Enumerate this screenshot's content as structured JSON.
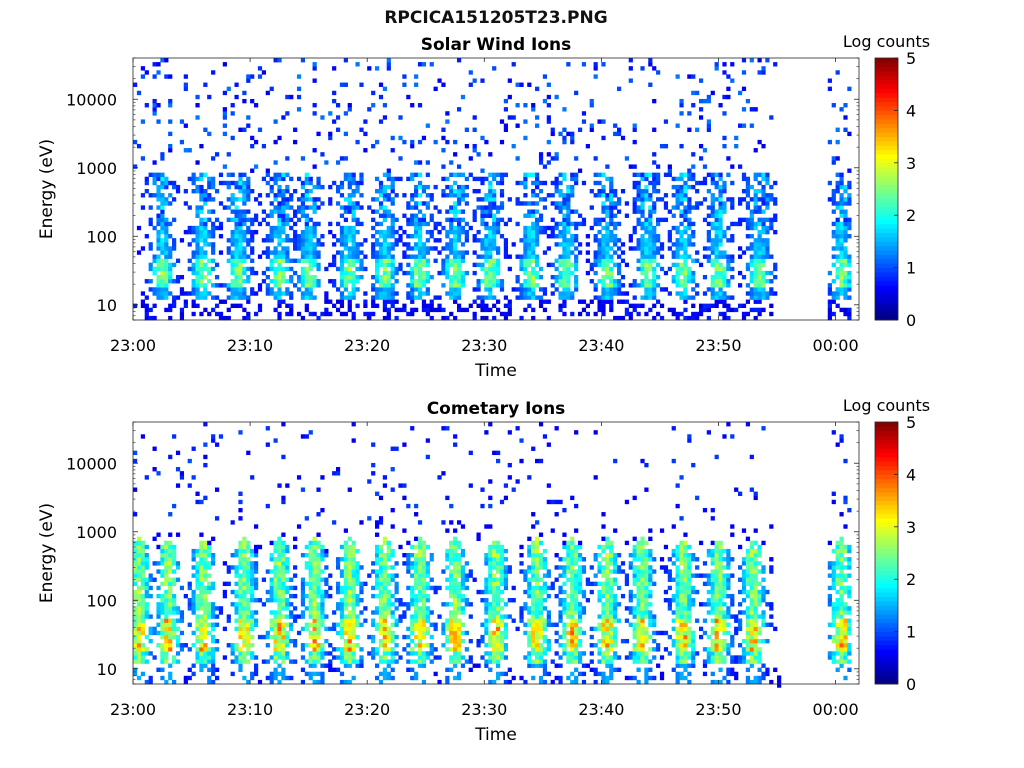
{
  "figure_title": "RPCICA151205T23.PNG",
  "chart_data": [
    {
      "type": "heatmap",
      "title": "Solar Wind Ions",
      "xlabel": "Time",
      "ylabel": "Energy (eV)",
      "x_ticks": [
        "23:00",
        "23:10",
        "23:20",
        "23:30",
        "23:40",
        "23:50",
        "00:00"
      ],
      "x_range_minutes": [
        0,
        62
      ],
      "y_ticks": [
        "10",
        "100",
        "1000",
        "10000"
      ],
      "y_scale": "log",
      "ylim": [
        6,
        40000
      ],
      "colorbar": {
        "label": "Log counts",
        "ticks": [
          "0",
          "1",
          "2",
          "3",
          "4",
          "5"
        ],
        "range": [
          0,
          5
        ],
        "colormap": "jet"
      },
      "data_end_minute": 55,
      "data_resume_minute": 59.5,
      "burst_centers_minutes": [
        2.5,
        6,
        9,
        12.5,
        15,
        18.5,
        21.5,
        24.5,
        27.5,
        30.5,
        34,
        37,
        40.5,
        44,
        47,
        50,
        53.5,
        60.5
      ],
      "burst_peak_log_counts": 2.3,
      "typical_burst_energy_range_ev": [
        15,
        600
      ],
      "background_level_log_counts": 0.3
    },
    {
      "type": "heatmap",
      "title": "Cometary Ions",
      "xlabel": "Time",
      "ylabel": "Energy (eV)",
      "x_ticks": [
        "23:00",
        "23:10",
        "23:20",
        "23:30",
        "23:40",
        "23:50",
        "00:00"
      ],
      "x_range_minutes": [
        0,
        62
      ],
      "y_ticks": [
        "10",
        "100",
        "1000",
        "10000"
      ],
      "y_scale": "log",
      "ylim": [
        6,
        40000
      ],
      "colorbar": {
        "label": "Log counts",
        "ticks": [
          "0",
          "1",
          "2",
          "3",
          "4",
          "5"
        ],
        "range": [
          0,
          5
        ],
        "colormap": "jet"
      },
      "data_end_minute": 55,
      "data_resume_minute": 59.5,
      "burst_centers_minutes": [
        0.5,
        3,
        6,
        9.5,
        12.5,
        15.5,
        18.5,
        21.5,
        24.5,
        27.5,
        31,
        34.5,
        37.5,
        40.5,
        43.5,
        47,
        50,
        53,
        60.5
      ],
      "burst_peak_log_counts": 3.4,
      "typical_burst_energy_range_ev": [
        15,
        700
      ],
      "background_level_log_counts": 0.5
    }
  ]
}
